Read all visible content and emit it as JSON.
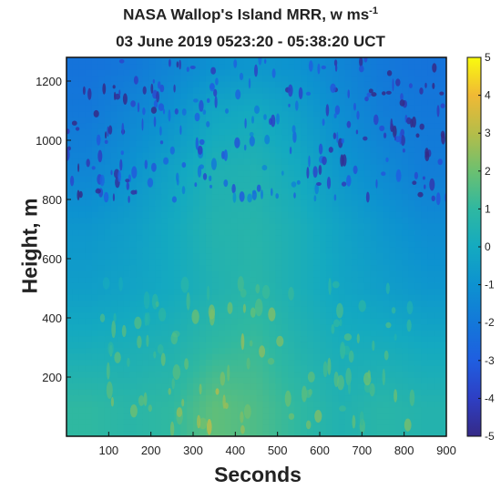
{
  "title": {
    "line1_main": "NASA Wallop's Island MRR, w ms",
    "line1_sup": "-1",
    "line2": "03 June 2019 0523:20 - 05:38:20 UCT"
  },
  "chart_data": {
    "type": "heatmap",
    "title": "NASA Wallop's Island MRR, w ms-1 / 03 June 2019 0523:20 - 05:38:20 UCT",
    "xlabel": "Seconds",
    "ylabel": "Height, m",
    "xlim": [
      0,
      900
    ],
    "ylim": [
      0,
      1280
    ],
    "xticks": [
      "100",
      "200",
      "300",
      "400",
      "500",
      "600",
      "700",
      "800",
      "900"
    ],
    "yticks": [
      "200",
      "400",
      "600",
      "800",
      "1000",
      "1200"
    ],
    "colorbar": {
      "label": "",
      "range": [
        -5,
        5
      ],
      "ticks": [
        "5",
        "4",
        "3",
        "2",
        "1",
        "0",
        "-1",
        "-2",
        "-3",
        "-4",
        "-5"
      ],
      "colormap": "parula"
    },
    "heights": [
      100,
      300,
      500,
      700,
      900,
      1100,
      1250
    ],
    "seconds": [
      50,
      150,
      250,
      350,
      450,
      550,
      650,
      750,
      850
    ],
    "values": [
      [
        1.0,
        0.8,
        1.0,
        1.8,
        1.5,
        1.0,
        0.5,
        0.8,
        0.6
      ],
      [
        0.2,
        0.3,
        0.5,
        1.0,
        1.2,
        0.6,
        0.2,
        0.2,
        0.0
      ],
      [
        -0.5,
        -0.3,
        0.0,
        0.5,
        0.8,
        0.3,
        -0.2,
        -0.5,
        -0.8
      ],
      [
        -0.8,
        -0.5,
        0.0,
        0.6,
        0.7,
        0.3,
        -0.3,
        -0.8,
        -1.2
      ],
      [
        -1.5,
        -1.0,
        -0.3,
        0.4,
        0.5,
        0.0,
        -0.8,
        -1.3,
        -1.8
      ],
      [
        -2.0,
        -1.5,
        -1.0,
        -0.2,
        0.0,
        -0.5,
        -1.2,
        -1.8,
        -2.0
      ],
      [
        -2.2,
        -2.0,
        -1.5,
        -1.0,
        -0.8,
        -1.0,
        -1.5,
        -2.0,
        -2.2
      ]
    ],
    "grid": false
  }
}
